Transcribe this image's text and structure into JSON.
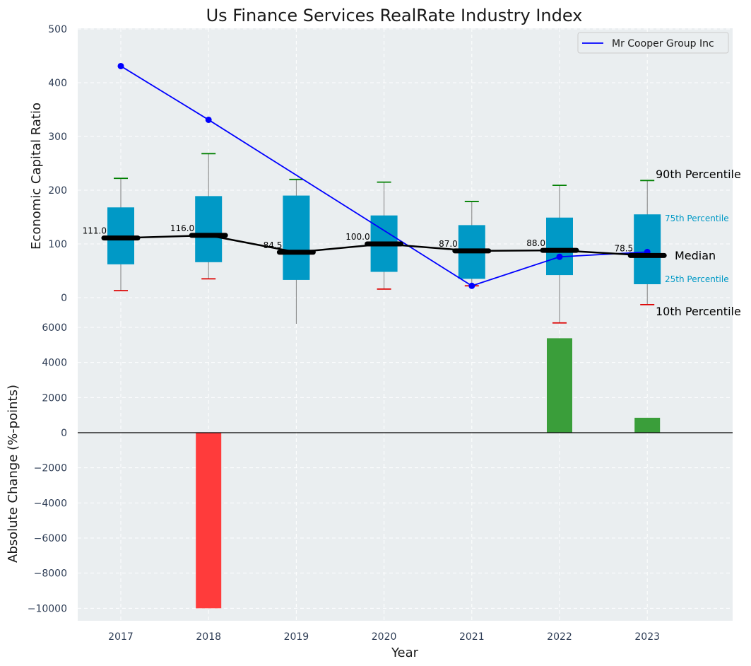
{
  "chart_data": [
    {
      "type": "box",
      "title": "Us Finance Services RealRate Industry Index",
      "ylabel": "Economic Capital Ratio",
      "ylim": [
        -50,
        500
      ],
      "yticks": [
        0,
        100,
        200,
        300,
        400,
        500
      ],
      "categories": [
        "2017",
        "2018",
        "2019",
        "2020",
        "2021",
        "2022",
        "2023"
      ],
      "boxes": [
        {
          "p10": 13,
          "p25": 62,
          "median": 111.0,
          "p75": 168,
          "p90": 222
        },
        {
          "p10": 35,
          "p25": 66,
          "median": 116.0,
          "p75": 189,
          "p90": 268
        },
        {
          "p10": -50,
          "p25": 33,
          "median": 84.5,
          "p75": 190,
          "p90": 220
        },
        {
          "p10": 16,
          "p25": 48,
          "median": 100.0,
          "p75": 153,
          "p90": 215
        },
        {
          "p10": 22,
          "p25": 35,
          "median": 87.0,
          "p75": 135,
          "p90": 179
        },
        {
          "p10": -47,
          "p25": 42,
          "median": 88.0,
          "p75": 149,
          "p90": 209
        },
        {
          "p10": -13,
          "p25": 25,
          "median": 78.5,
          "p75": 155,
          "p90": 218
        }
      ],
      "median_labels": [
        "111.0",
        "116.0",
        "84.5",
        "100.0",
        "87.0",
        "88.0",
        "78.5"
      ],
      "series": [
        {
          "name": "Mr Cooper Group Inc",
          "values": [
            431,
            331,
            null,
            null,
            22,
            76,
            85
          ]
        }
      ],
      "legend": {
        "entries": [
          "Mr Cooper Group Inc"
        ],
        "placement": "top-right"
      },
      "percentile_labels": {
        "p90": "90th Percentile",
        "p75": "75th Percentile",
        "median": "Median",
        "p25": "25th Percentile",
        "p10": "10th Percentile"
      },
      "grid": true
    },
    {
      "type": "bar",
      "xlabel": "Year",
      "ylabel": "Absolute Change (%-points)",
      "ylim": [
        -10700,
        6000
      ],
      "yticks": [
        -10000,
        -8000,
        -6000,
        -4000,
        -2000,
        0,
        2000,
        4000,
        6000
      ],
      "ytick_labels": [
        "−10000",
        "−8000",
        "−6000",
        "−4000",
        "−2000",
        "0",
        "2000",
        "4000",
        "6000"
      ],
      "categories": [
        "2017",
        "2018",
        "2019",
        "2020",
        "2021",
        "2022",
        "2023"
      ],
      "values": [
        0,
        -10000,
        0,
        0,
        0,
        5380,
        850
      ],
      "grid": true
    }
  ],
  "colors": {
    "box": "#0099c6",
    "median": "#000000",
    "p90_cap": "#008000",
    "p10_cap": "#dd0000",
    "series": "#0000ff",
    "positive_bar": "#3a9e3a",
    "negative_bar": "#ff3b3b",
    "plot_bg": "#eaeef0",
    "whisker": "#808080"
  }
}
